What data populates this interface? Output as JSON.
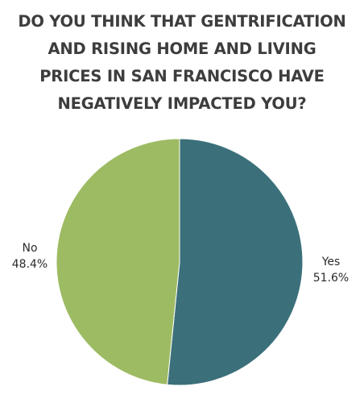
{
  "chart_data": {
    "type": "pie",
    "title": "DO YOU THINK THAT GENTRIFICATION\nAND RISING HOME AND LIVING\nPRICES IN SAN FRANCISCO HAVE\nNEGATIVELY IMPACTED YOU?",
    "slices": [
      {
        "label": "Yes",
        "value": 51.6,
        "value_label": "51.6%",
        "color": "#3b707a"
      },
      {
        "label": "No",
        "value": 48.4,
        "value_label": "48.4%",
        "color": "#9dbb63"
      }
    ],
    "start_angle_deg": 0,
    "direction": "clockwise",
    "legend": "none",
    "labels": "outside"
  }
}
